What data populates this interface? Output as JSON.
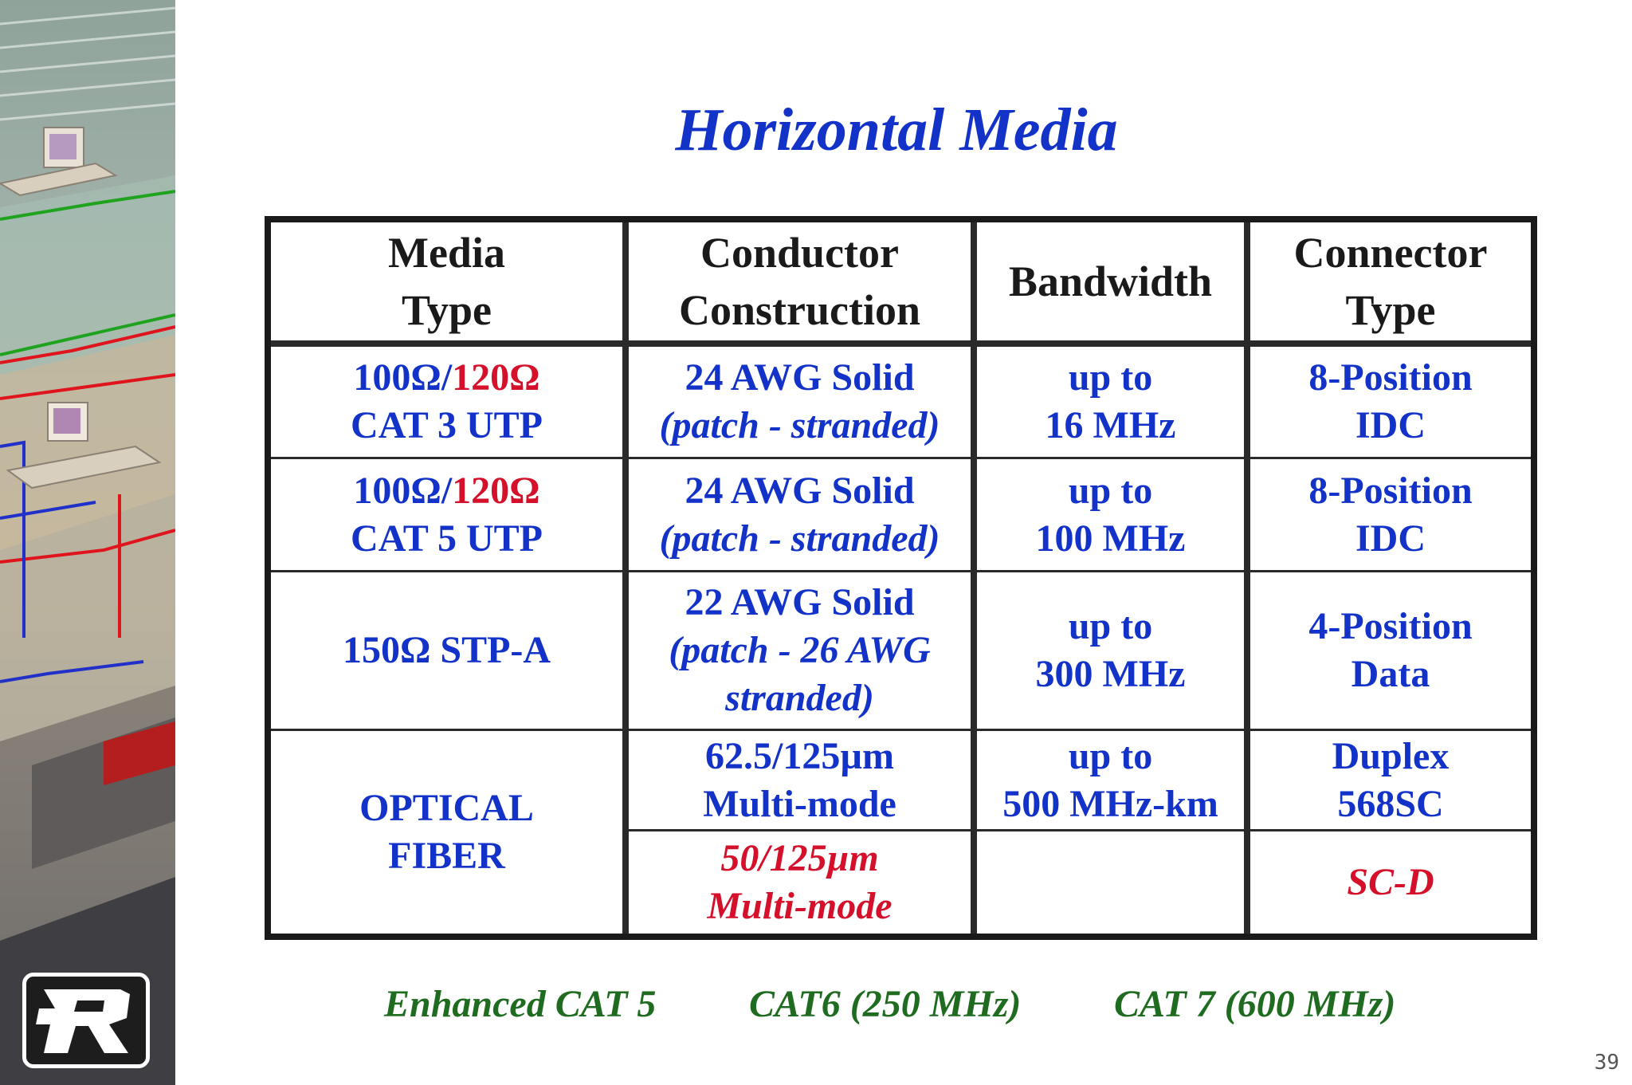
{
  "slide": {
    "title": "Horizontal Media",
    "page_number": "39"
  },
  "table": {
    "headers": {
      "media_type": [
        "Media",
        "Type"
      ],
      "conductor": [
        "Conductor",
        "Construction"
      ],
      "bandwidth": "Bandwidth",
      "connector": [
        "Connector",
        "Type"
      ]
    },
    "rows": [
      {
        "media_a": "100Ω/",
        "media_b": "120Ω",
        "media_c": "CAT 3 UTP",
        "conductor_1": "24 AWG Solid",
        "conductor_2": "(patch - stranded)",
        "bandwidth_1": "up to",
        "bandwidth_2": "16 MHz",
        "connector_1": "8-Position",
        "connector_2": "IDC"
      },
      {
        "media_a": "100Ω/",
        "media_b": "120Ω",
        "media_c": "CAT 5 UTP",
        "conductor_1": "24 AWG Solid",
        "conductor_2": "(patch - stranded)",
        "bandwidth_1": "up to",
        "bandwidth_2": "100 MHz",
        "connector_1": "8-Position",
        "connector_2": "IDC"
      },
      {
        "media": "150Ω STP-A",
        "conductor_1": "22 AWG Solid",
        "conductor_2": "(patch - 26 AWG",
        "conductor_3": "stranded)",
        "bandwidth_1": "up to",
        "bandwidth_2": "300 MHz",
        "connector_1": "4-Position",
        "connector_2": "Data"
      },
      {
        "media_1": "OPTICAL",
        "media_2": "FIBER",
        "sub": [
          {
            "conductor_1": "62.5/125µm",
            "conductor_2": "Multi-mode",
            "bandwidth_1": "up to",
            "bandwidth_2": "500 MHz-km",
            "connector_1": "Duplex",
            "connector_2": "568SC"
          },
          {
            "conductor_1": "50/125µm",
            "conductor_2": "Multi-mode",
            "connector": "SC-D"
          }
        ]
      }
    ]
  },
  "footer_notes": [
    "Enhanced CAT 5",
    "CAT6 (250 MHz)",
    "CAT 7 (600 MHz)"
  ],
  "colors": {
    "title": "#1232c8",
    "body_text": "#1232c8",
    "highlight": "#d4102a",
    "notes": "#1f6b1f"
  }
}
